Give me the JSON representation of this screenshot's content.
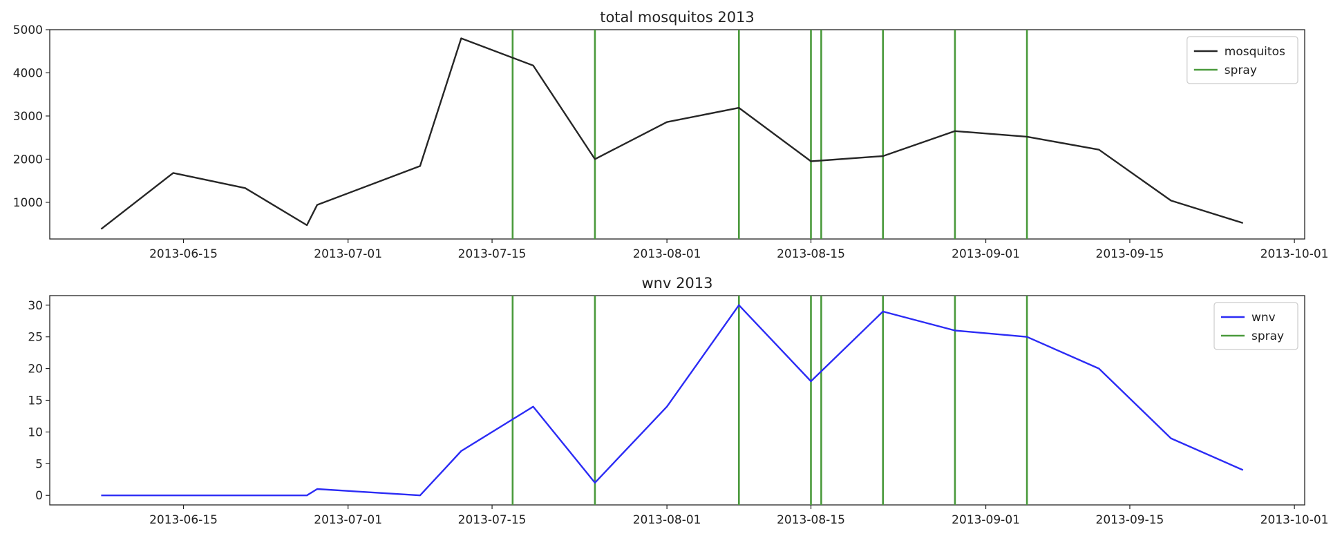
{
  "chart_data": [
    {
      "type": "line",
      "title": "total mosquitos 2013",
      "xlabel": "",
      "ylabel": "",
      "x_ticks": [
        "2013-06-15",
        "2013-07-01",
        "2013-07-15",
        "2013-08-01",
        "2013-08-15",
        "2013-09-01",
        "2013-09-15",
        "2013-10-01"
      ],
      "xlim": [
        "2013-06-02",
        "2013-10-02"
      ],
      "y_ticks": [
        1000,
        2000,
        3000,
        4000,
        5000
      ],
      "ylim": [
        150,
        5000
      ],
      "grid": false,
      "legend": "top-right",
      "series": [
        {
          "name": "mosquitos",
          "color": "#262626",
          "x": [
            "2013-06-07",
            "2013-06-14",
            "2013-06-21",
            "2013-06-27",
            "2013-06-28",
            "2013-07-08",
            "2013-07-12",
            "2013-07-19",
            "2013-07-25",
            "2013-08-01",
            "2013-08-08",
            "2013-08-15",
            "2013-08-22",
            "2013-08-29",
            "2013-09-05",
            "2013-09-12",
            "2013-09-19",
            "2013-09-26"
          ],
          "values": [
            380,
            1680,
            1330,
            470,
            940,
            1840,
            4800,
            4170,
            2000,
            2860,
            3190,
            1950,
            2070,
            2650,
            2520,
            2220,
            1040,
            520
          ]
        }
      ],
      "spray": {
        "name": "spray",
        "color": "#4a9a3c",
        "dates": [
          "2013-07-17",
          "2013-07-25",
          "2013-08-08",
          "2013-08-15",
          "2013-08-16",
          "2013-08-22",
          "2013-08-29",
          "2013-09-05"
        ]
      }
    },
    {
      "type": "line",
      "title": "wnv 2013",
      "xlabel": "",
      "ylabel": "",
      "x_ticks": [
        "2013-06-15",
        "2013-07-01",
        "2013-07-15",
        "2013-08-01",
        "2013-08-15",
        "2013-09-01",
        "2013-09-15",
        "2013-10-01"
      ],
      "xlim": [
        "2013-06-02",
        "2013-10-02"
      ],
      "y_ticks": [
        0,
        5,
        10,
        15,
        20,
        25,
        30
      ],
      "ylim": [
        -1.5,
        31.5
      ],
      "grid": false,
      "legend": "top-right",
      "series": [
        {
          "name": "wnv",
          "color": "#2b2bf5",
          "x": [
            "2013-06-07",
            "2013-06-14",
            "2013-06-21",
            "2013-06-27",
            "2013-06-28",
            "2013-07-08",
            "2013-07-12",
            "2013-07-19",
            "2013-07-25",
            "2013-08-01",
            "2013-08-08",
            "2013-08-15",
            "2013-08-22",
            "2013-08-29",
            "2013-09-05",
            "2013-09-12",
            "2013-09-19",
            "2013-09-26"
          ],
          "values": [
            0,
            0,
            0,
            0,
            1,
            0,
            7,
            14,
            2,
            14,
            30,
            18,
            29,
            26,
            25,
            20,
            9,
            4
          ]
        }
      ],
      "spray": {
        "name": "spray",
        "color": "#4a9a3c",
        "dates": [
          "2013-07-17",
          "2013-07-25",
          "2013-08-08",
          "2013-08-15",
          "2013-08-16",
          "2013-08-22",
          "2013-08-29",
          "2013-09-05"
        ]
      }
    }
  ]
}
